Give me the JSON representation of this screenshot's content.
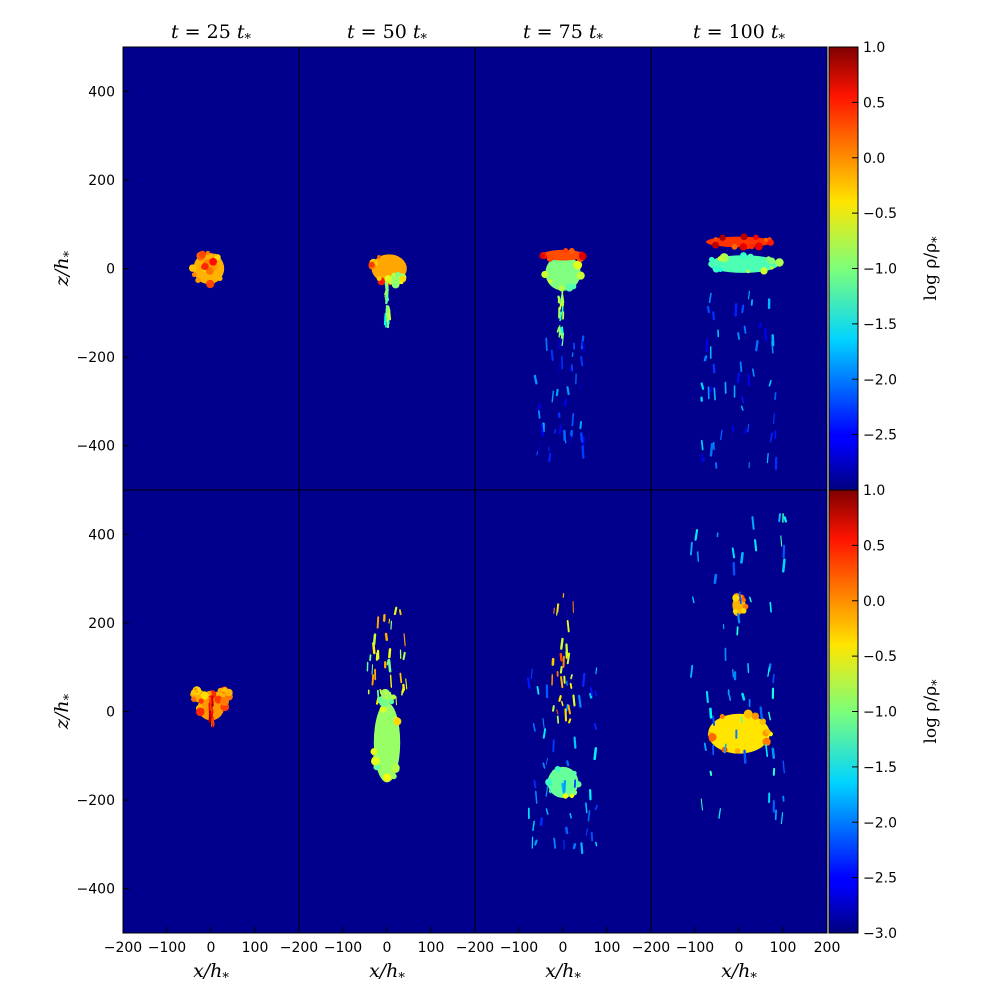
{
  "chart_data": {
    "type": "heatmap",
    "layout": "2 rows x 4 columns of panels",
    "column_titles": [
      "t = 25 t*",
      "t = 50 t*",
      "t = 75 t*",
      "t = 100 t*"
    ],
    "column_title_parts": [
      {
        "lhs": "t = ",
        "num": "25",
        "unit": "t",
        "sub": "*"
      },
      {
        "lhs": "t = ",
        "num": "50",
        "unit": "t",
        "sub": "*"
      },
      {
        "lhs": "t = ",
        "num": "75",
        "unit": "t",
        "sub": "*"
      },
      {
        "lhs": "t = ",
        "num": "100",
        "unit": "t",
        "sub": "*"
      }
    ],
    "xlabel": "x/h*",
    "ylabel": "z/h*",
    "xlim": [
      -200,
      200
    ],
    "ylim": [
      -500,
      500
    ],
    "xticks": [
      -200,
      -100,
      0,
      100,
      200
    ],
    "xtick_labels": [
      "−200",
      "−100",
      "0",
      "100",
      "200"
    ],
    "yticks": [
      -400,
      -200,
      0,
      200,
      400
    ],
    "ytick_labels": [
      "−400",
      "−200",
      "0",
      "200",
      "400"
    ],
    "colorbar": {
      "label": "log ρ/ρ*",
      "colormap": "jet",
      "range": [
        -3.0,
        1.0
      ],
      "ticks_top": [
        1.0,
        0.5,
        0.0,
        -0.5,
        -1.0,
        -1.5,
        -2.0,
        -2.5
      ],
      "ticks_bottom": [
        1.0,
        0.5,
        0.0,
        -0.5,
        -1.0,
        -1.5,
        -2.0,
        -2.5,
        -3.0
      ],
      "tick_labels_top": [
        "1.0",
        "0.5",
        "0.0",
        "−0.5",
        "−1.0",
        "−1.5",
        "−2.0",
        "−2.5"
      ],
      "tick_labels_bottom": [
        "1.0",
        "0.5",
        "0.0",
        "−0.5",
        "−1.0",
        "−1.5",
        "−2.0",
        "−2.5",
        "−3.0"
      ]
    },
    "background_value": -2.95,
    "grid": false,
    "panels": [
      {
        "row": 0,
        "col": 0,
        "features": [
          {
            "shape": "disc",
            "cx": -5,
            "cz": 0,
            "rx": 35,
            "rz": 35,
            "value": -0.2
          },
          {
            "shape": "disc",
            "cx": 0,
            "cz": 5,
            "rx": 15,
            "rz": 12,
            "value": -0.1
          }
        ]
      },
      {
        "row": 0,
        "col": 1,
        "features": [
          {
            "shape": "disc",
            "cx": 5,
            "cz": 0,
            "rx": 40,
            "rz": 32,
            "value": -0.15
          },
          {
            "shape": "disc",
            "cx": 20,
            "cz": -25,
            "rx": 18,
            "rz": 12,
            "value": -0.9
          },
          {
            "shape": "streak",
            "cx": 0,
            "cz": -70,
            "rx": 5,
            "rz": 40,
            "value": -1.2
          }
        ]
      },
      {
        "row": 0,
        "col": 2,
        "features": [
          {
            "shape": "disc",
            "cx": 0,
            "cz": -10,
            "rx": 40,
            "rz": 40,
            "value": -1.0
          },
          {
            "shape": "disc",
            "cx": 0,
            "cz": 30,
            "rx": 48,
            "rz": 12,
            "value": 0.2
          },
          {
            "shape": "streak",
            "cx": -5,
            "cz": -100,
            "rx": 6,
            "rz": 50,
            "value": -1.1
          },
          {
            "shape": "streak",
            "cx": -5,
            "cz": -300,
            "rx": 60,
            "rz": 150,
            "value": -2.3
          }
        ]
      },
      {
        "row": 0,
        "col": 3,
        "features": [
          {
            "shape": "band",
            "cx": 0,
            "cz": 60,
            "rx": 75,
            "rz": 12,
            "value": 0.3
          },
          {
            "shape": "band",
            "cx": 10,
            "cz": 10,
            "rx": 80,
            "rz": 20,
            "value": -1.2
          },
          {
            "shape": "streak",
            "cx": 0,
            "cz": -250,
            "rx": 90,
            "rz": 200,
            "value": -2.1
          }
        ]
      },
      {
        "row": 1,
        "col": 0,
        "features": [
          {
            "shape": "disc",
            "cx": 0,
            "cz": 10,
            "rx": 30,
            "rz": 30,
            "value": -0.1
          },
          {
            "shape": "disc",
            "cx": -28,
            "cz": 35,
            "rx": 15,
            "rz": 14,
            "value": -0.2
          },
          {
            "shape": "disc",
            "cx": 28,
            "cz": 35,
            "rx": 15,
            "rz": 14,
            "value": -0.2
          },
          {
            "shape": "streak",
            "cx": 0,
            "cz": 5,
            "rx": 4,
            "rz": 30,
            "value": 0.6
          }
        ]
      },
      {
        "row": 1,
        "col": 1,
        "features": [
          {
            "shape": "band",
            "cx": 0,
            "cz": -70,
            "rx": 30,
            "rz": 90,
            "value": -0.9
          },
          {
            "shape": "disc",
            "cx": 0,
            "cz": 30,
            "rx": 15,
            "rz": 12,
            "value": -0.9
          },
          {
            "shape": "streak",
            "cx": 0,
            "cz": 130,
            "rx": 45,
            "rz": 110,
            "value": -0.6
          }
        ]
      },
      {
        "row": 1,
        "col": 2,
        "features": [
          {
            "shape": "disc",
            "cx": 0,
            "cz": -160,
            "rx": 35,
            "rz": 35,
            "value": -1.1
          },
          {
            "shape": "streak",
            "cx": 0,
            "cz": 120,
            "rx": 25,
            "rz": 150,
            "value": -0.3
          },
          {
            "shape": "streak",
            "cx": 0,
            "cz": -100,
            "rx": 80,
            "rz": 200,
            "value": -2.0
          }
        ]
      },
      {
        "row": 1,
        "col": 3,
        "features": [
          {
            "shape": "band",
            "cx": 0,
            "cz": -50,
            "rx": 70,
            "rz": 45,
            "value": -0.4
          },
          {
            "shape": "disc",
            "cx": 0,
            "cz": 240,
            "rx": 15,
            "rz": 20,
            "value": -0.2
          },
          {
            "shape": "streak",
            "cx": 0,
            "cz": 100,
            "rx": 110,
            "rz": 350,
            "value": -1.7
          }
        ]
      }
    ]
  }
}
